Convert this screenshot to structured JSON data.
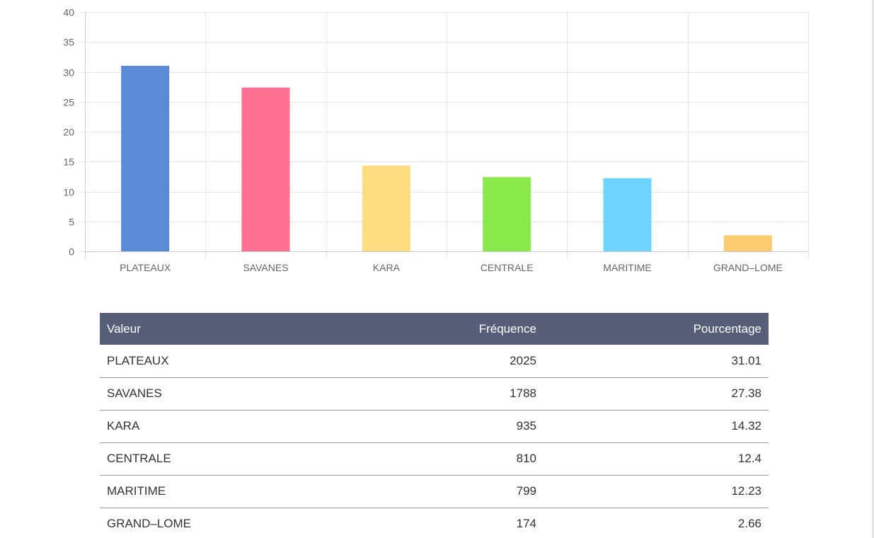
{
  "chart_data": {
    "type": "bar",
    "categories": [
      "PLATEAUX",
      "SAVANES",
      "KARA",
      "CENTRALE",
      "MARITIME",
      "GRAND–LOME"
    ],
    "values": [
      31.01,
      27.38,
      14.32,
      12.4,
      12.23,
      2.66
    ],
    "colors": [
      "#5b8ad6",
      "#ff6f91",
      "#fbdc80",
      "#8aea4c",
      "#6ed3ff",
      "#fccb70"
    ],
    "ylim": [
      0,
      40
    ],
    "yticks": [
      0,
      5,
      10,
      15,
      20,
      25,
      30,
      35,
      40
    ],
    "grid": true,
    "title": "",
    "xlabel": "",
    "ylabel": ""
  },
  "table": {
    "headers": {
      "value": "Valeur",
      "frequency": "Fréquence",
      "percentage": "Pourcentage"
    },
    "rows": [
      {
        "value": "PLATEAUX",
        "frequency": "2025",
        "percentage": "31.01"
      },
      {
        "value": "SAVANES",
        "frequency": "1788",
        "percentage": "27.38"
      },
      {
        "value": "KARA",
        "frequency": "935",
        "percentage": "14.32"
      },
      {
        "value": "CENTRALE",
        "frequency": "810",
        "percentage": "12.4"
      },
      {
        "value": "MARITIME",
        "frequency": "799",
        "percentage": "12.23"
      },
      {
        "value": "GRAND–LOME",
        "frequency": "174",
        "percentage": "2.66"
      }
    ]
  }
}
